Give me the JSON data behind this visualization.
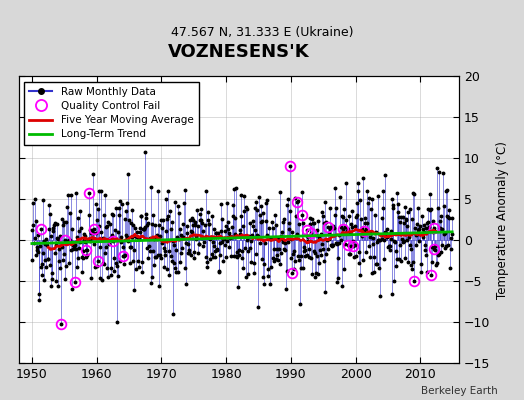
{
  "title": "VOZNESENS'K",
  "subtitle": "47.567 N, 31.333 E (Ukraine)",
  "ylabel": "Temperature Anomaly (°C)",
  "credit": "Berkeley Earth",
  "xlim": [
    1948,
    2016
  ],
  "ylim": [
    -15,
    20
  ],
  "yticks": [
    -15,
    -10,
    -5,
    0,
    5,
    10,
    15,
    20
  ],
  "xticks": [
    1950,
    1960,
    1970,
    1980,
    1990,
    2000,
    2010
  ],
  "bg_color": "#d8d8d8",
  "plot_bg_color": "#ffffff",
  "raw_line_color": "#3333cc",
  "raw_dot_color": "#000000",
  "qc_fail_color": "#ff00ff",
  "moving_avg_color": "#dd0000",
  "trend_color": "#00bb00",
  "trend_slope": 0.022,
  "trend_intercept": -0.4,
  "noise_scale": 2.8,
  "seed": 42
}
